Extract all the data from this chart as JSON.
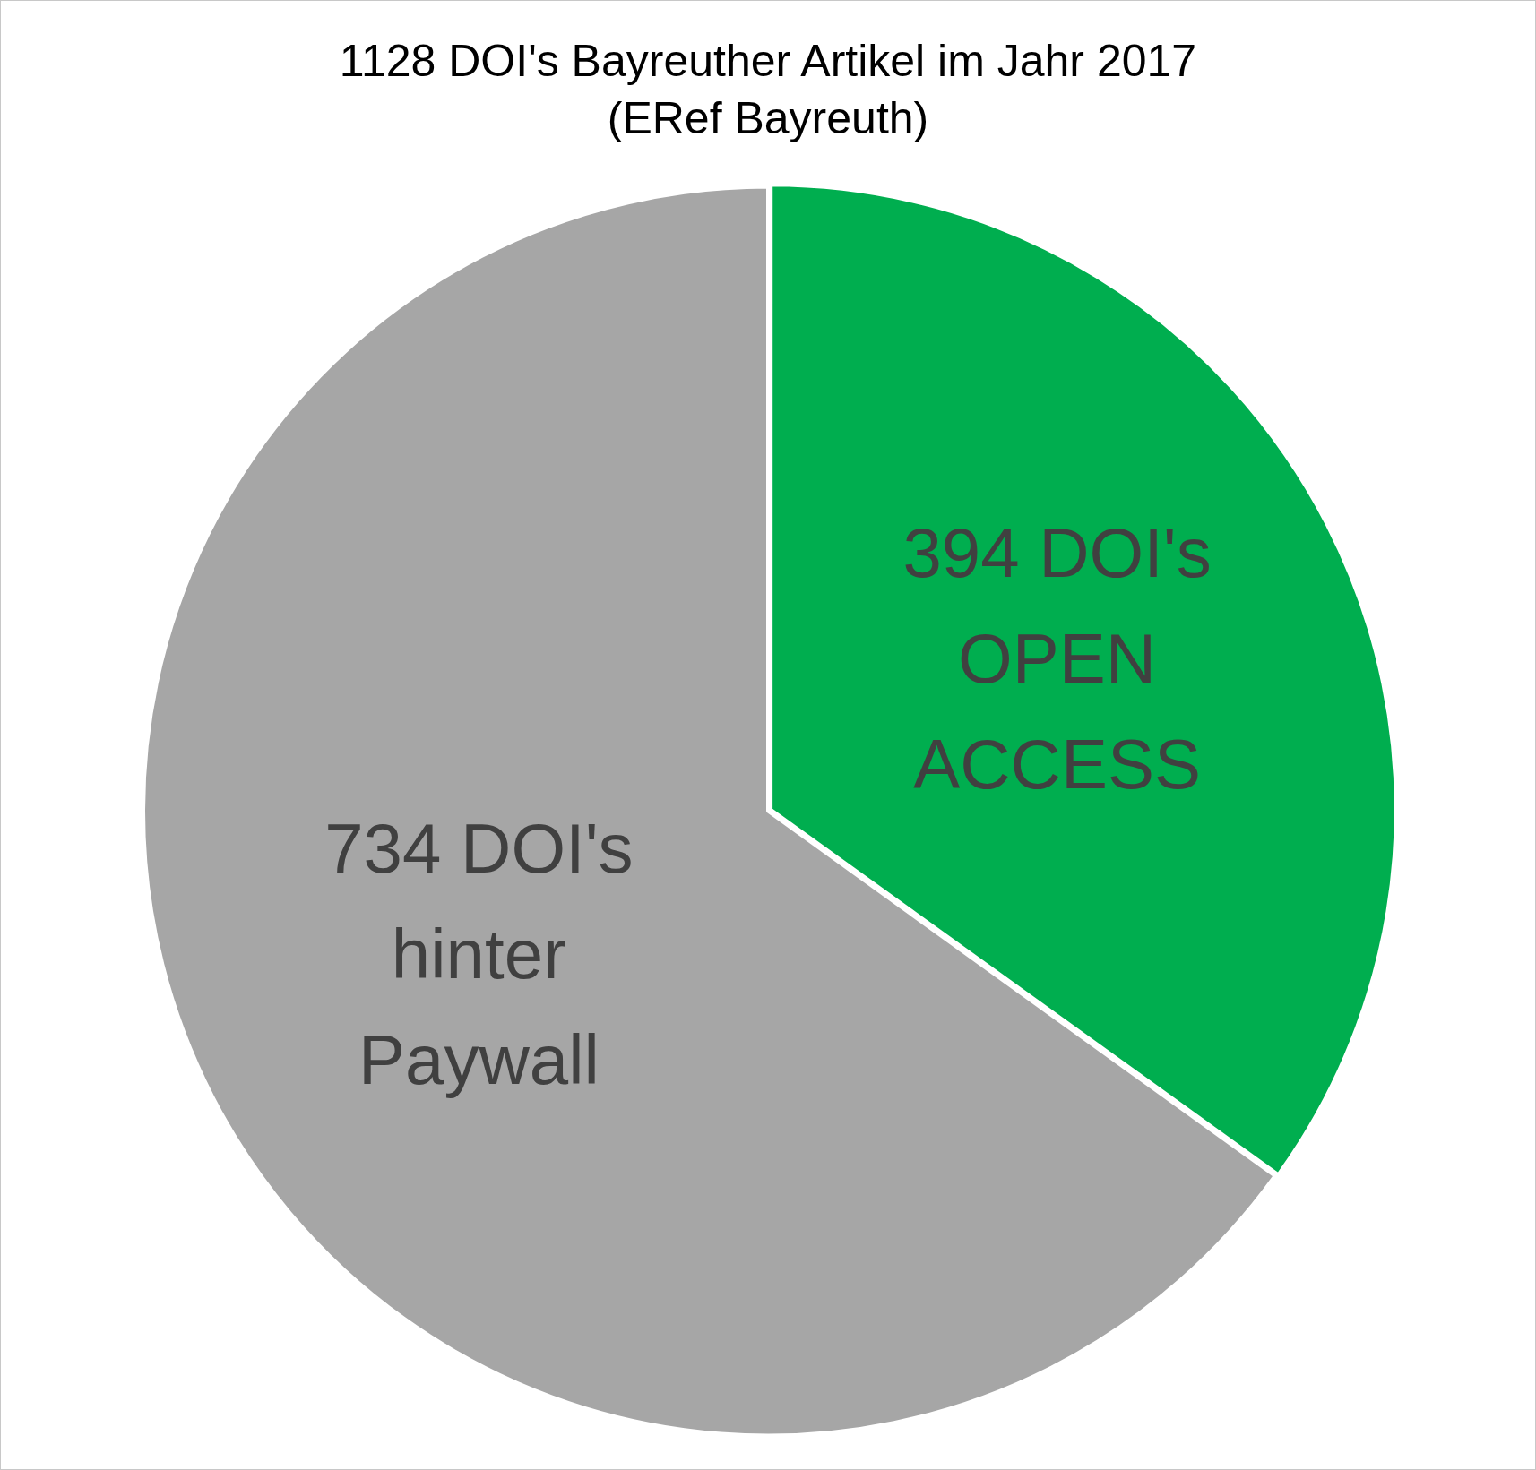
{
  "chart_data": {
    "type": "pie",
    "title": "1128 DOI's Bayreuther Artikel im Jahr 2017",
    "subtitle": "(ERef Bayreuth)",
    "categories": [
      "394 DOI's OPEN ACCESS",
      "734 DOI's hinter Paywall"
    ],
    "values": [
      394,
      734
    ],
    "colors": [
      "#00ae4f",
      "#a6a6a6"
    ],
    "legend": false
  }
}
